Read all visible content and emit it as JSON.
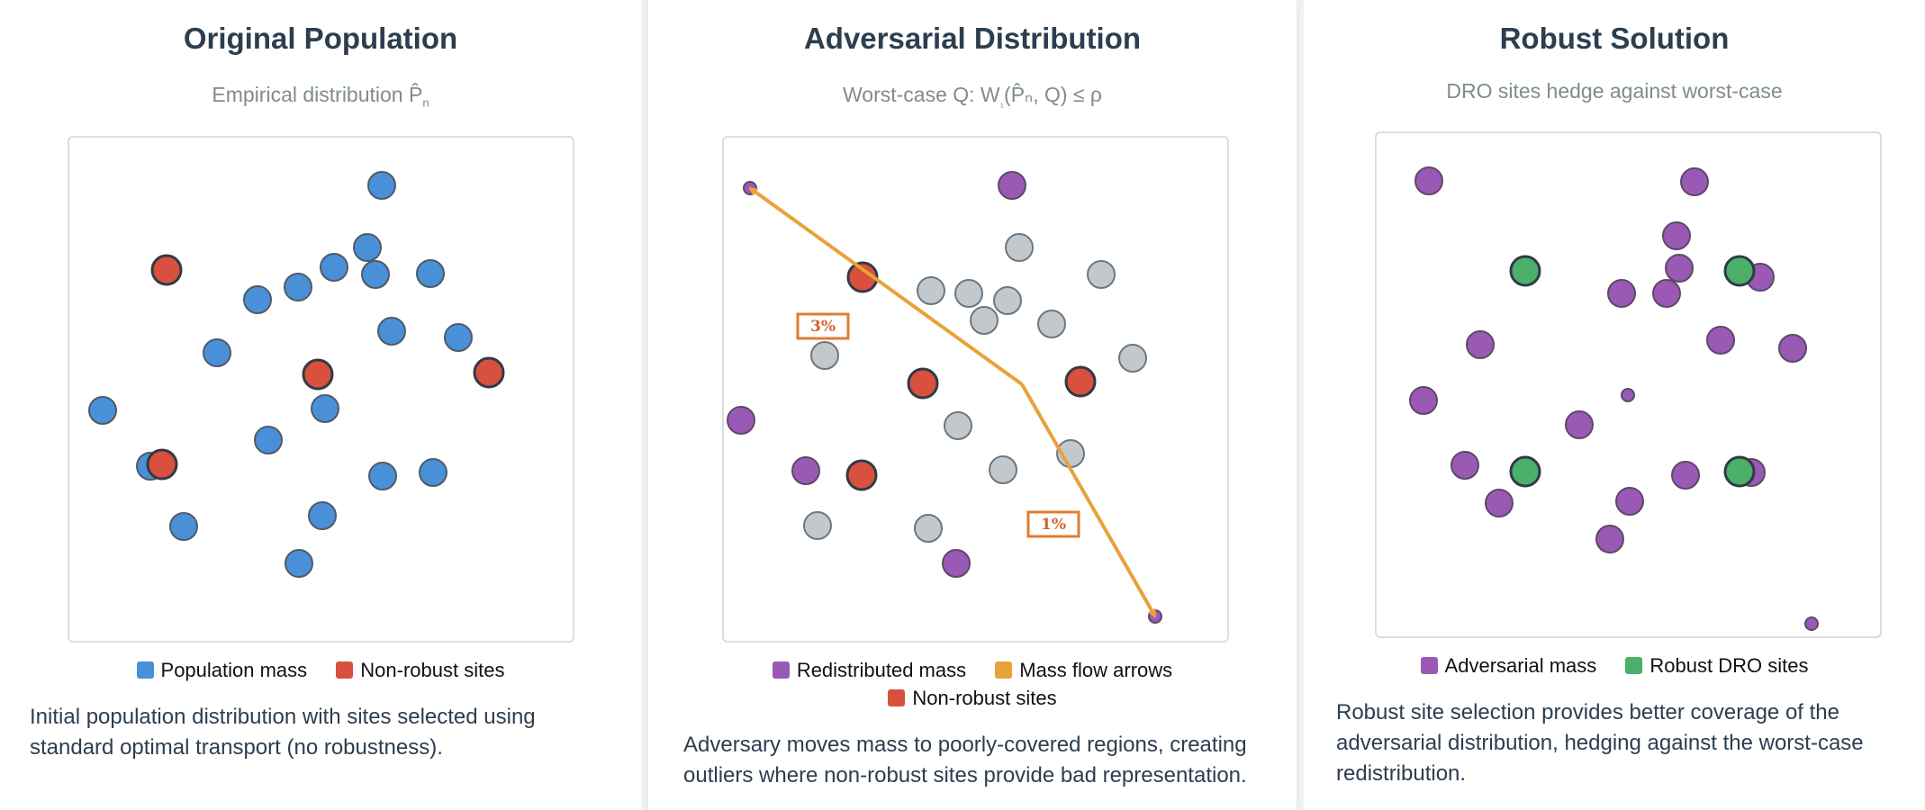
{
  "colors": {
    "population": "#4a90d9",
    "nonrobust": "#d9503f",
    "adversarial": "#9b59b6",
    "flow": "#e8a23a",
    "gray": "#c3c8cc",
    "robust": "#4caf6a"
  },
  "panels": [
    {
      "title": "Original Population",
      "subtitle_pre": "Empirical distribution ",
      "subtitle_sym": "P̂",
      "subtitle_sub": "n",
      "subtitle_post": "",
      "legend": [
        {
          "label": "Population mass",
          "color": "population"
        },
        {
          "label": "Non-robust sites",
          "color": "nonrobust"
        }
      ],
      "description": "Initial population distribution with sites selected using standard optimal transport (no robustness)."
    },
    {
      "title": "Adversarial Distribution",
      "subtitle_pre": "Worst-case Q: W",
      "subtitle_sym": "₁",
      "subtitle_sub": "",
      "subtitle_post": "(P̂ₙ, Q) ≤ ρ",
      "legend": [
        {
          "label": "Redistributed mass",
          "color": "adversarial"
        },
        {
          "label": "Mass flow arrows",
          "color": "flow"
        },
        {
          "label": "Non-robust sites",
          "color": "nonrobust"
        }
      ],
      "description": "Adversary moves mass to poorly-covered regions, creating outliers where non-robust sites provide bad representation."
    },
    {
      "title": "Robust Solution",
      "subtitle_pre": "DRO sites hedge against worst-case",
      "subtitle_sym": "",
      "subtitle_sub": "",
      "subtitle_post": "",
      "legend": [
        {
          "label": "Adversarial mass",
          "color": "adversarial"
        },
        {
          "label": "Robust DRO sites",
          "color": "robust"
        }
      ],
      "description": "Robust site selection provides better coverage of the adversarial distribution, hedging against the worst-case redistribution."
    }
  ],
  "flow_labels": [
    "3%",
    "1%"
  ],
  "plots": {
    "p1_points": [
      [
        349,
        55
      ],
      [
        333,
        124
      ],
      [
        342,
        154
      ],
      [
        296,
        146
      ],
      [
        256,
        168
      ],
      [
        211,
        182
      ],
      [
        403,
        153
      ],
      [
        166,
        241
      ],
      [
        360,
        217
      ],
      [
        434,
        224
      ],
      [
        286,
        303
      ],
      [
        39,
        305
      ],
      [
        223,
        338
      ],
      [
        92,
        367
      ],
      [
        350,
        378
      ],
      [
        406,
        374
      ],
      [
        283,
        422
      ],
      [
        129,
        434
      ],
      [
        257,
        475
      ]
    ],
    "p1_sites": [
      [
        110,
        149
      ],
      [
        278,
        265
      ],
      [
        468,
        263
      ],
      [
        105,
        365
      ]
    ],
    "p2_gray": [
      [
        330,
        124
      ],
      [
        317,
        183
      ],
      [
        274,
        175
      ],
      [
        421,
        154
      ],
      [
        232,
        172
      ],
      [
        366,
        209
      ],
      [
        291,
        205
      ],
      [
        262,
        322
      ],
      [
        114,
        244
      ],
      [
        456,
        247
      ],
      [
        387,
        353
      ],
      [
        312,
        371
      ],
      [
        106,
        433
      ],
      [
        229,
        436
      ]
    ],
    "p2_purple": [
      [
        322,
        55
      ],
      [
        21,
        316
      ],
      [
        93,
        372
      ],
      [
        260,
        475
      ]
    ],
    "p2_small": [
      [
        31,
        58
      ],
      [
        481,
        534
      ]
    ],
    "p2_sites": [
      [
        156,
        157
      ],
      [
        223,
        275
      ],
      [
        398,
        273
      ],
      [
        155,
        377
      ]
    ],
    "p2_arrows": [
      {
        "from": [
          333,
          276
        ],
        "to": [
          31,
          58
        ],
        "label_at": [
          112,
          211
        ]
      },
      {
        "from": [
          333,
          276
        ],
        "to": [
          481,
          534
        ],
        "label_at": [
          368,
          431
        ]
      }
    ],
    "p3_purple": [
      [
        60,
        55
      ],
      [
        355,
        56
      ],
      [
        335,
        116
      ],
      [
        338,
        152
      ],
      [
        428,
        162
      ],
      [
        274,
        180
      ],
      [
        324,
        180
      ],
      [
        117,
        237
      ],
      [
        384,
        232
      ],
      [
        464,
        241
      ],
      [
        54,
        299
      ],
      [
        227,
        326
      ],
      [
        100,
        371
      ],
      [
        345,
        382
      ],
      [
        418,
        379
      ],
      [
        138,
        413
      ],
      [
        283,
        411
      ],
      [
        261,
        453
      ]
    ],
    "p3_small": [
      [
        281,
        293
      ],
      [
        485,
        547
      ]
    ],
    "p3_sites": [
      [
        167,
        155
      ],
      [
        405,
        155
      ],
      [
        167,
        378
      ],
      [
        405,
        378
      ]
    ]
  }
}
